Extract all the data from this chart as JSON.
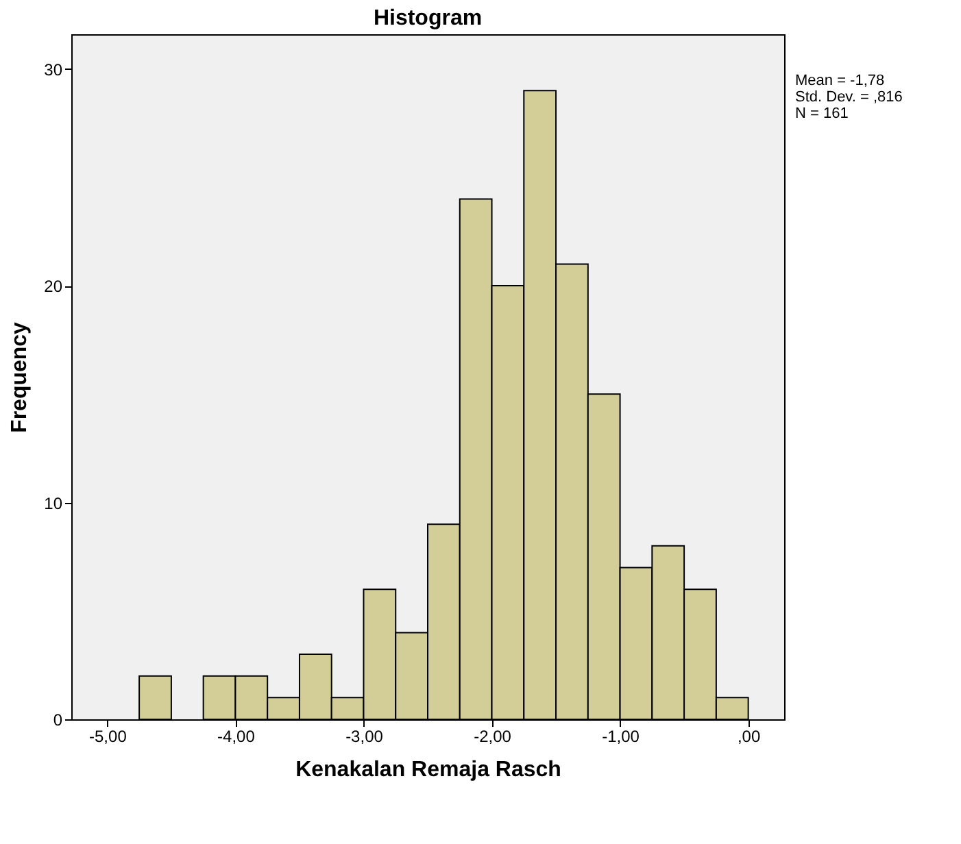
{
  "chart_data": {
    "type": "histogram",
    "title": "Histogram",
    "xlabel": "Kenakalan Remaja Rasch",
    "ylabel": "Frequency",
    "bins": [
      -4.75,
      -4.5,
      -4.25,
      -4.0,
      -3.75,
      -3.5,
      -3.25,
      -3.0,
      -2.75,
      -2.5,
      -2.25,
      -2.0,
      -1.75,
      -1.5,
      -1.25,
      -1.0,
      -0.75,
      -0.5,
      -0.25,
      0.0
    ],
    "values": [
      2,
      0,
      2,
      2,
      1,
      3,
      1,
      6,
      4,
      9,
      24,
      20,
      29,
      21,
      15,
      7,
      8,
      6,
      1
    ],
    "color": "#d3ce97",
    "xlim": [
      -5.28,
      0.28
    ],
    "xticks": [
      {
        "value": -5,
        "label": "-5,00"
      },
      {
        "value": -4,
        "label": "-4,00"
      },
      {
        "value": -3,
        "label": "-3,00"
      },
      {
        "value": -2,
        "label": "-2,00"
      },
      {
        "value": -1,
        "label": "-1,00"
      },
      {
        "value": 0,
        "label": ",00"
      }
    ],
    "ylim": [
      0,
      31.6
    ],
    "yticks": [
      0,
      10,
      20,
      30
    ],
    "annotations": [
      "Mean = -1,78",
      "Std. Dev. = ,816",
      "N = 161"
    ],
    "grid": false
  }
}
